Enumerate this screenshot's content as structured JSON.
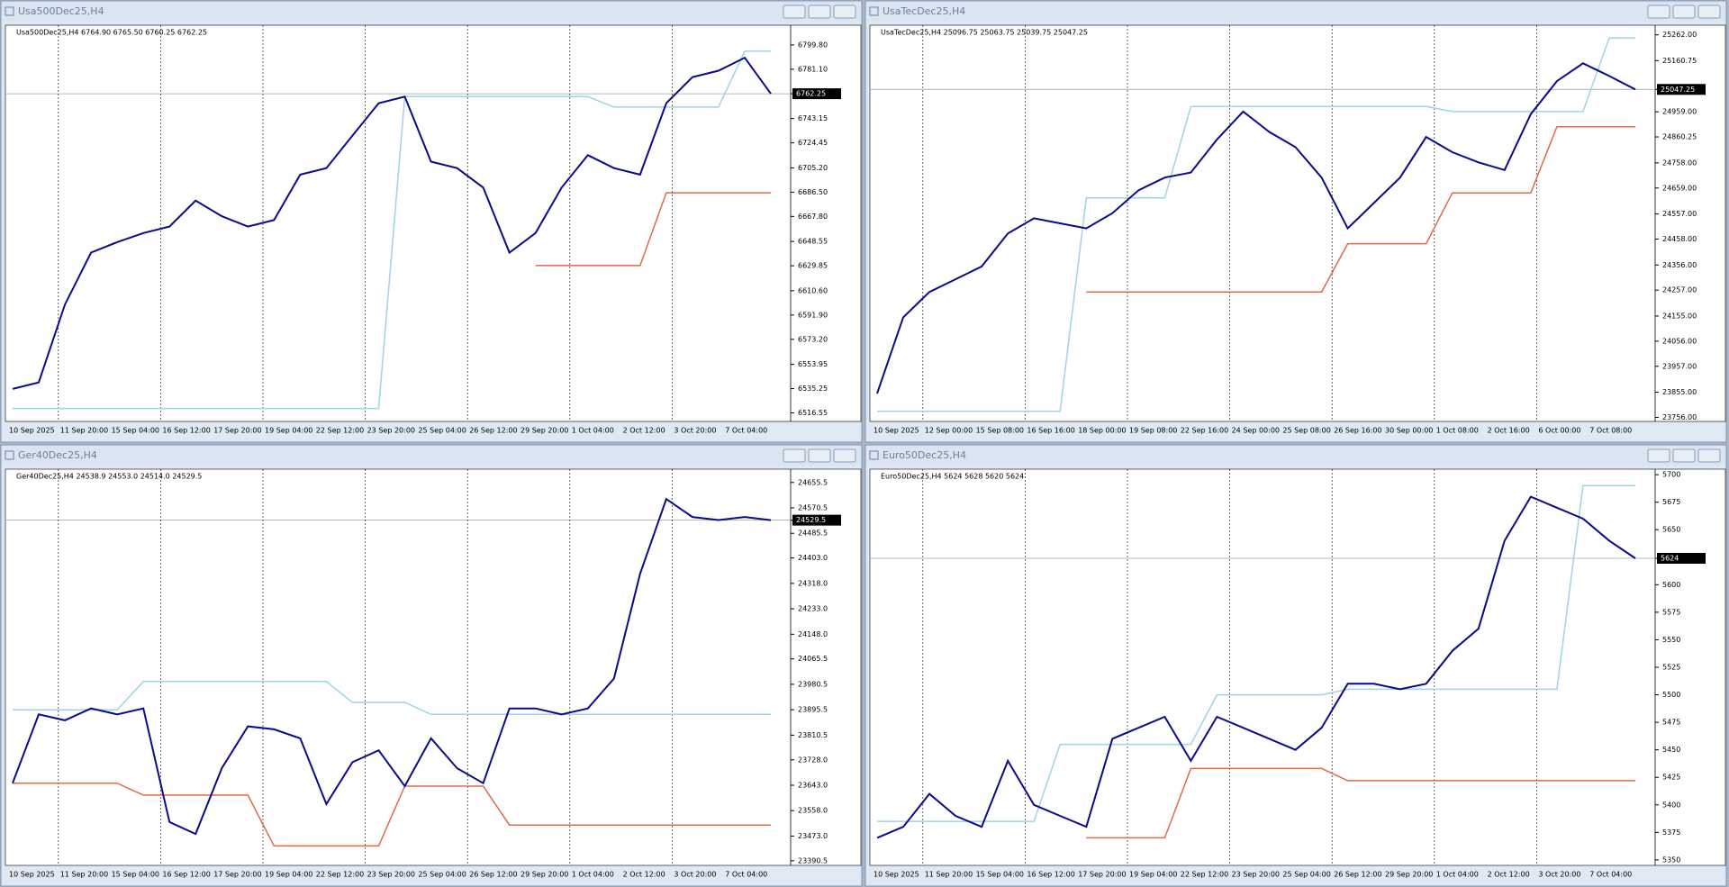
{
  "line_colors": {
    "closes": "#0a0a8c",
    "upper": "#9fd3e6",
    "lower": "#e06a4a"
  },
  "windows": [
    {
      "title": "Usa500Dec25,H4",
      "header": "Usa500Dec25,H4  6764.90 6765.50 6760.25 6762.25",
      "ylim": [
        6510,
        6815
      ],
      "yticks": [
        {
          "value": 6799.8,
          "label": "6799.80"
        },
        {
          "value": 6781.1,
          "label": "6781.10"
        },
        6762.25,
        6743.15,
        6724.45,
        {
          "value": 6705.2,
          "label": "6705.20"
        },
        {
          "value": 6686.5,
          "label": "6686.50"
        },
        {
          "value": 6667.8,
          "label": "6667.80"
        },
        6648.55,
        6629.85,
        {
          "value": 6610.6,
          "label": "6610.60"
        },
        {
          "value": 6591.9,
          "label": "6591.90"
        },
        {
          "value": 6573.2,
          "label": "6573.20"
        },
        6553.95,
        6535.25,
        6516.55
      ],
      "xlabels": [
        "10 Sep 2025",
        "11 Sep 20:00",
        "15 Sep 04:00",
        "16 Sep 12:00",
        "17 Sep 20:00",
        "19 Sep 04:00",
        "22 Sep 12:00",
        "23 Sep 20:00",
        "25 Sep 04:00",
        "26 Sep 12:00",
        "29 Sep 20:00",
        "1 Oct 04:00",
        "2 Oct 12:00",
        "3 Oct 20:00",
        "7 Oct 04:00"
      ],
      "closes": [
        6535,
        6540,
        6600,
        6640,
        6648,
        6655,
        6660,
        6680,
        6668,
        6660,
        6665,
        6700,
        6705,
        6730,
        6755,
        6760,
        6710,
        6705,
        6690,
        6640,
        6655,
        6690,
        6715,
        6705,
        6700,
        6755,
        6775,
        6780,
        6790,
        6762.25
      ],
      "upper": [
        6520,
        6520,
        6520,
        6520,
        6520,
        6520,
        6520,
        6520,
        6520,
        6520,
        6520,
        6520,
        6520,
        6520,
        6520,
        6760,
        6760,
        6760,
        6760,
        6760,
        6760,
        6760,
        6760,
        6752,
        6752,
        6752,
        6752,
        6752,
        6795,
        6795
      ],
      "lower": [
        null,
        null,
        null,
        null,
        null,
        null,
        null,
        null,
        null,
        null,
        null,
        null,
        null,
        null,
        null,
        null,
        null,
        null,
        null,
        null,
        6630,
        6630,
        6630,
        6630,
        6630,
        6686,
        6686,
        6686,
        6686,
        6686
      ]
    },
    {
      "title": "UsaTecDec25,H4",
      "header": "UsaTecDec25,H4  25096.75 25063.75 25039.75 25047.25",
      "ylim": [
        23740,
        25300
      ],
      "yticks": [
        {
          "value": 25262,
          "label": "25262.00"
        },
        25160.75,
        25047.25,
        {
          "value": 24959,
          "label": "24959.00"
        },
        24860.25,
        {
          "value": 24758,
          "label": "24758.00"
        },
        {
          "value": 24659,
          "label": "24659.00"
        },
        {
          "value": 24557,
          "label": "24557.00"
        },
        {
          "value": 24458,
          "label": "24458.00"
        },
        {
          "value": 24356,
          "label": "24356.00"
        },
        {
          "value": 24257,
          "label": "24257.00"
        },
        {
          "value": 24155,
          "label": "24155.00"
        },
        {
          "value": 24056,
          "label": "24056.00"
        },
        {
          "value": 23957,
          "label": "23957.00"
        },
        {
          "value": 23855,
          "label": "23855.00"
        },
        {
          "value": 23756,
          "label": "23756.00"
        }
      ],
      "xlabels": [
        "10 Sep 2025",
        "12 Sep 00:00",
        "15 Sep 08:00",
        "16 Sep 16:00",
        "18 Sep 00:00",
        "19 Sep 08:00",
        "22 Sep 16:00",
        "24 Sep 00:00",
        "25 Sep 08:00",
        "26 Sep 16:00",
        "30 Sep 00:00",
        "1 Oct 08:00",
        "2 Oct 16:00",
        "6 Oct 00:00",
        "7 Oct 08:00"
      ],
      "closes": [
        23850,
        24150,
        24250,
        24300,
        24350,
        24480,
        24540,
        24520,
        24500,
        24560,
        24650,
        24700,
        24720,
        24850,
        24960,
        24880,
        24820,
        24700,
        24500,
        24600,
        24700,
        24860,
        24800,
        24760,
        24730,
        24950,
        25080,
        25150,
        25100,
        25047.25
      ],
      "upper": [
        23780,
        23780,
        23780,
        23780,
        23780,
        23780,
        23780,
        23780,
        24620,
        24620,
        24620,
        24620,
        24980,
        24980,
        24980,
        24980,
        24980,
        24980,
        24980,
        24980,
        24980,
        24980,
        24960,
        24960,
        24960,
        24960,
        24960,
        24960,
        25250,
        25250
      ],
      "lower": [
        null,
        null,
        null,
        null,
        null,
        null,
        null,
        null,
        24250,
        24250,
        24250,
        24250,
        24250,
        24250,
        24250,
        24250,
        24250,
        24250,
        24440,
        24440,
        24440,
        24440,
        24640,
        24640,
        24640,
        24640,
        24900,
        24900,
        24900,
        24900
      ]
    },
    {
      "title": "Ger40Dec25,H4",
      "header": "Ger40Dec25,H4  24538.9 24553.0 24514.0 24529.5",
      "ylim": [
        23375,
        24700
      ],
      "yticks": [
        24655.5,
        24570.5,
        24529.5,
        24485.5,
        {
          "value": 24403,
          "label": "24403.0"
        },
        {
          "value": 24318,
          "label": "24318.0"
        },
        {
          "value": 24233,
          "label": "24233.0"
        },
        {
          "value": 24148,
          "label": "24148.0"
        },
        24065.5,
        23980.5,
        23895.5,
        23810.5,
        {
          "value": 23728,
          "label": "23728.0"
        },
        {
          "value": 23643,
          "label": "23643.0"
        },
        {
          "value": 23558,
          "label": "23558.0"
        },
        {
          "value": 23473,
          "label": "23473.0"
        },
        23390.5
      ],
      "xlabels": [
        "10 Sep 2025",
        "11 Sep 20:00",
        "15 Sep 04:00",
        "16 Sep 12:00",
        "17 Sep 20:00",
        "19 Sep 04:00",
        "22 Sep 12:00",
        "23 Sep 20:00",
        "25 Sep 04:00",
        "26 Sep 12:00",
        "29 Sep 20:00",
        "1 Oct 04:00",
        "2 Oct 12:00",
        "3 Oct 20:00",
        "7 Oct 04:00"
      ],
      "closes": [
        23650,
        23880,
        23860,
        23900,
        23880,
        23900,
        23520,
        23480,
        23700,
        23840,
        23830,
        23800,
        23580,
        23720,
        23760,
        23640,
        23800,
        23700,
        23650,
        23900,
        23900,
        23880,
        23900,
        24000,
        24350,
        24600,
        24540,
        24530,
        24540,
        24529.5
      ],
      "upper": [
        23895,
        23895,
        23895,
        23895,
        23895,
        23990,
        23990,
        23990,
        23990,
        23990,
        23990,
        23990,
        23990,
        23920,
        23920,
        23920,
        23880,
        23880,
        23880,
        23880,
        23880,
        23880,
        23880,
        23880,
        23880,
        23880,
        23880,
        23880,
        23880,
        23880
      ],
      "lower": [
        23650,
        23650,
        23650,
        23650,
        23650,
        23610,
        23610,
        23610,
        23610,
        23610,
        23440,
        23440,
        23440,
        23440,
        23440,
        23640,
        23640,
        23640,
        23640,
        23510,
        23510,
        23510,
        23510,
        23510,
        23510,
        23510,
        23510,
        23510,
        23510,
        23510
      ]
    },
    {
      "title": "Euro50Dec25,H4",
      "header": "Euro50Dec25,H4  5624 5628 5620 5624",
      "ylim": [
        5345,
        5705
      ],
      "yticks": [
        5700,
        5675,
        5650,
        5624,
        5600,
        5575,
        5550,
        5525,
        5500,
        5475,
        5450,
        5425,
        5400,
        5375,
        5350
      ],
      "xlabels": [
        "10 Sep 2025",
        "11 Sep 20:00",
        "15 Sep 04:00",
        "16 Sep 12:00",
        "17 Sep 20:00",
        "19 Sep 04:00",
        "22 Sep 12:00",
        "23 Sep 20:00",
        "25 Sep 04:00",
        "26 Sep 12:00",
        "29 Sep 20:00",
        "1 Oct 04:00",
        "2 Oct 12:00",
        "3 Oct 20:00",
        "7 Oct 04:00"
      ],
      "closes": [
        5370,
        5380,
        5410,
        5390,
        5380,
        5440,
        5400,
        5390,
        5380,
        5460,
        5470,
        5480,
        5440,
        5480,
        5470,
        5460,
        5450,
        5470,
        5510,
        5510,
        5505,
        5510,
        5540,
        5560,
        5640,
        5680,
        5670,
        5660,
        5640,
        5624
      ],
      "upper": [
        5385,
        5385,
        5385,
        5385,
        5385,
        5385,
        5385,
        5455,
        5455,
        5455,
        5455,
        5455,
        5455,
        5500,
        5500,
        5500,
        5500,
        5500,
        5505,
        5505,
        5505,
        5505,
        5505,
        5505,
        5505,
        5505,
        5505,
        5690,
        5690,
        5690
      ],
      "lower": [
        null,
        null,
        null,
        null,
        null,
        null,
        null,
        null,
        5370,
        5370,
        5370,
        5370,
        5433,
        5433,
        5433,
        5433,
        5433,
        5433,
        5422,
        5422,
        5422,
        5422,
        5422,
        5422,
        5422,
        5422,
        5422,
        5422,
        5422,
        5422
      ]
    }
  ]
}
